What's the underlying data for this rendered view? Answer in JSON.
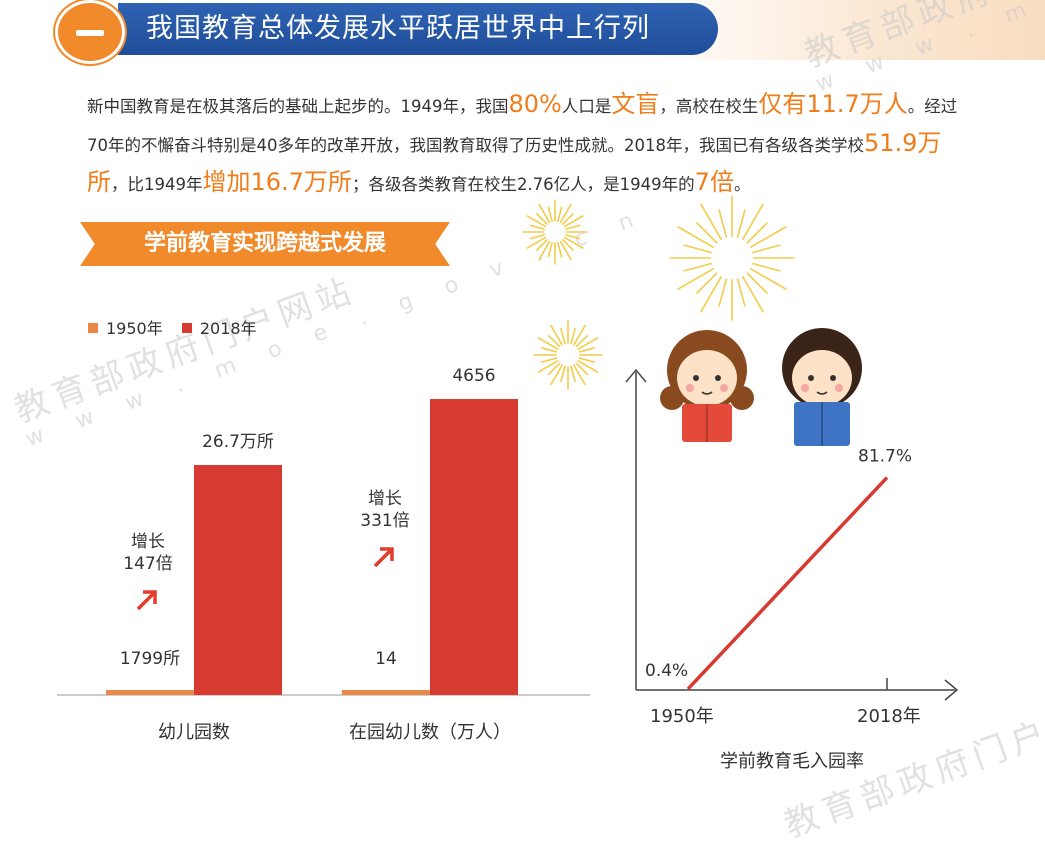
{
  "header": {
    "title": "我国教育总体发展水平跃居世界中上行列"
  },
  "intro": {
    "t1": "新中国教育是在极其落后的基础上起步的。1949年，我国",
    "h1": "80%",
    "t2": "人口是",
    "h2": "文盲",
    "t3": "，高校在校生",
    "h3": "仅有11.7万人",
    "t4": "。经过70年的不懈奋斗特别是40多年的改革开放，我国教育取得了历史性成就。2018年，我国已有各级各类学校",
    "h4": "51.9万所",
    "t5": "，比1949年",
    "h5": "增加16.7万所",
    "t6": "；各级各类教育在校生2.76亿人，是1949年的",
    "h6": "7倍",
    "t7": "。"
  },
  "section": {
    "title": "学前教育实现跨越式发展"
  },
  "watermark": {
    "main": "教育部政府门户网站",
    "sub": "w w w . m o e . g o v . c n"
  },
  "colors": {
    "accent_orange": "#f08a2a",
    "highlight_orange": "#ef7d1a",
    "bar_1950": "#e8894a",
    "bar_2018": "#d63a31",
    "header_blue": "#2558a8"
  },
  "chart_data": [
    {
      "type": "bar",
      "categories": [
        "幼儿园数",
        "在园幼儿数（万人）"
      ],
      "series": [
        {
          "name": "1950年",
          "values": [
            1799,
            14
          ],
          "labels": [
            "1799所",
            "14"
          ]
        },
        {
          "name": "2018年",
          "values": [
            267000,
            4656
          ],
          "labels": [
            "26.7万所",
            "4656"
          ]
        }
      ],
      "growth": [
        {
          "line1": "增长",
          "line2": "147倍"
        },
        {
          "line1": "增长",
          "line2": "331倍"
        }
      ],
      "legend": "top-left",
      "grid": false
    },
    {
      "type": "line",
      "x": [
        "1950年",
        "2018年"
      ],
      "y": [
        0.4,
        81.7
      ],
      "value_labels": [
        "0.4%",
        "81.7%"
      ],
      "xlabel": "学前教育毛入园率",
      "grid": false
    }
  ]
}
